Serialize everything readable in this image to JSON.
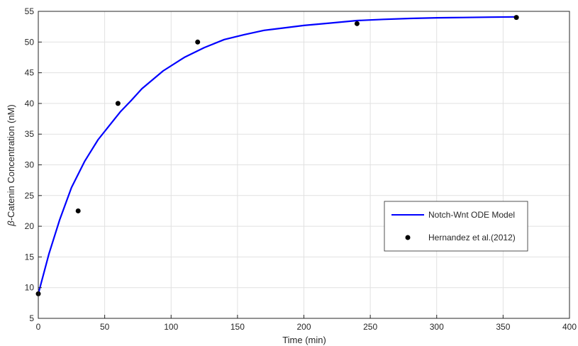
{
  "chart_data": {
    "type": "line",
    "xlabel": "Time (min)",
    "ylabel_symbol": "β",
    "ylabel_rest": "-Catenin Concentration (nM)",
    "xlim": [
      0,
      400
    ],
    "ylim": [
      5,
      55
    ],
    "xticks": [
      0,
      50,
      100,
      150,
      200,
      250,
      300,
      350,
      400
    ],
    "yticks": [
      5,
      10,
      15,
      20,
      25,
      30,
      35,
      40,
      45,
      50,
      55
    ],
    "grid": true,
    "legend_position": "lower-right",
    "series": [
      {
        "name": "Notch-Wnt ODE Model",
        "kind": "line",
        "color": "#0000ff",
        "x": [
          0,
          8,
          16,
          25,
          35,
          45,
          55,
          62,
          70,
          78,
          94,
          110,
          125,
          140,
          155,
          170,
          185,
          200,
          220,
          240,
          260,
          280,
          300,
          320,
          340,
          360
        ],
        "y": [
          9,
          15.5,
          21,
          26.3,
          30.6,
          34.1,
          36.8,
          38.7,
          40.5,
          42.4,
          45.3,
          47.5,
          49.1,
          50.4,
          51.2,
          51.9,
          52.3,
          52.7,
          53.1,
          53.5,
          53.7,
          53.85,
          53.95,
          54.0,
          54.05,
          54.1
        ]
      },
      {
        "name": "Hernandez et al.(2012)",
        "kind": "scatter",
        "color": "#000000",
        "x": [
          0,
          30,
          60,
          120,
          240,
          360
        ],
        "y": [
          9,
          22.5,
          40,
          50,
          53,
          54
        ]
      }
    ]
  }
}
